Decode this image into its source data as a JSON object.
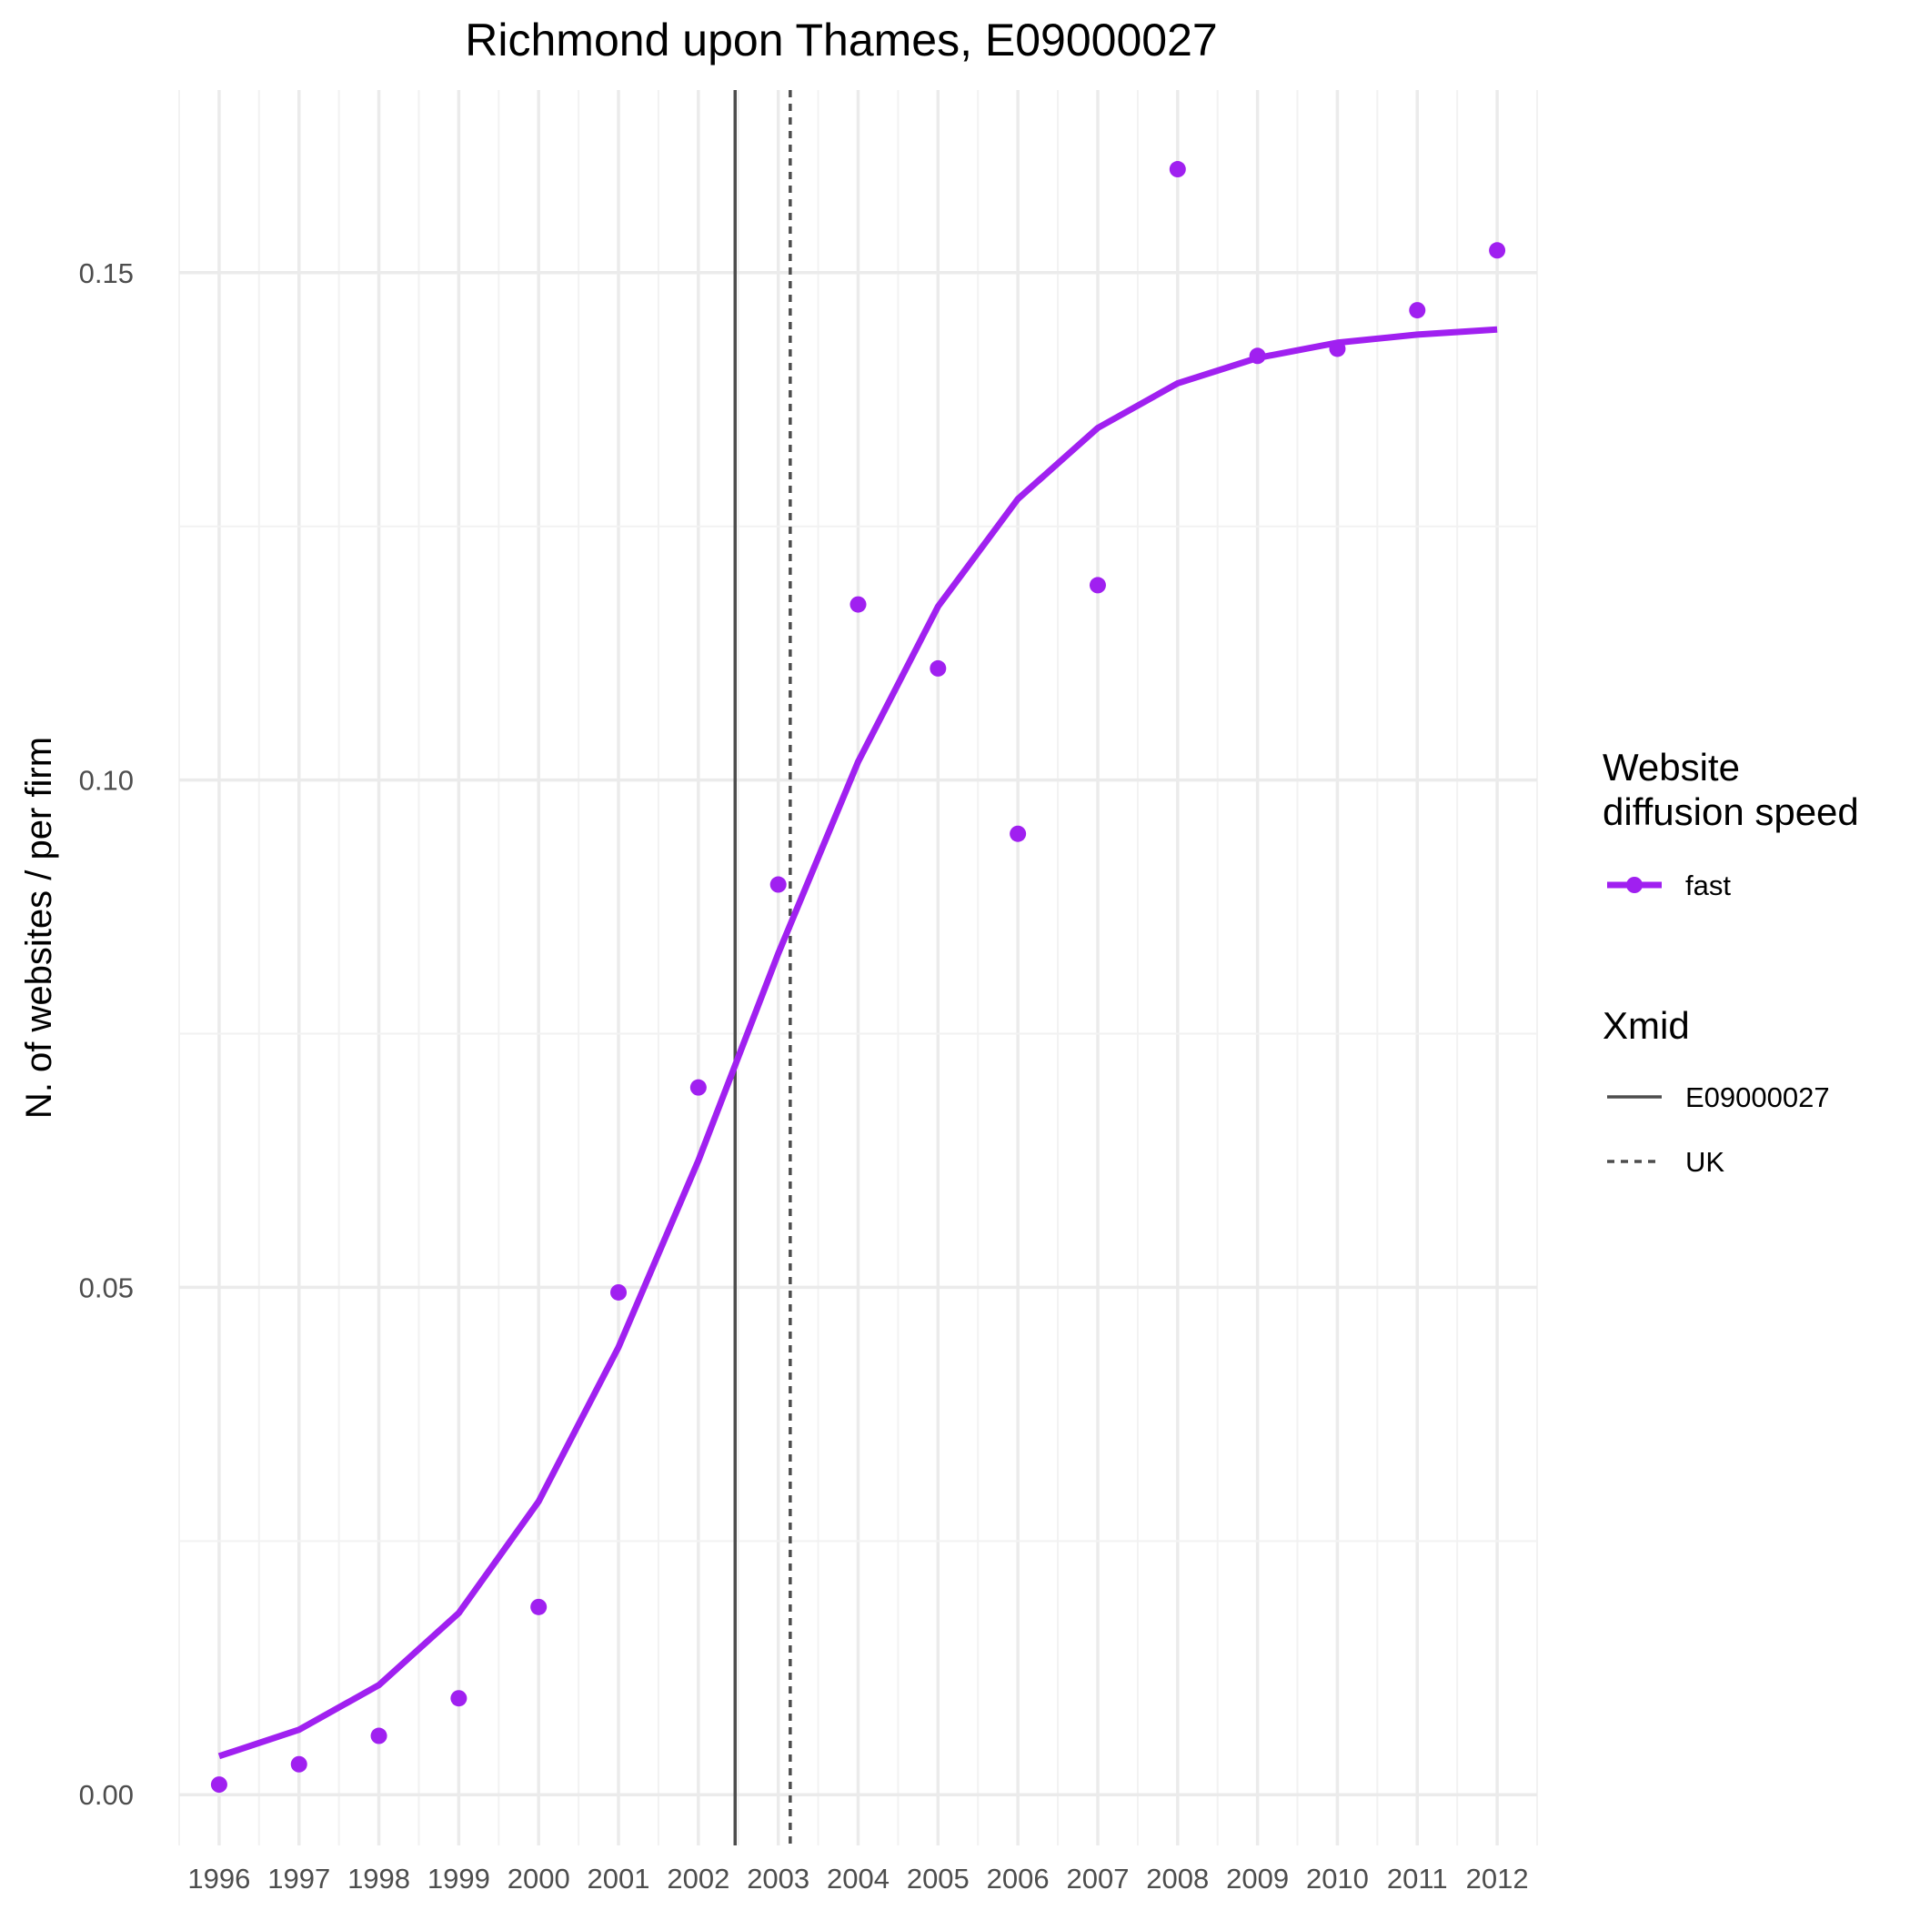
{
  "chart_data": {
    "type": "line",
    "title": "Richmond upon Thames, E09000027",
    "xlabel": "",
    "ylabel": "N. of websites / per firm",
    "x": [
      "1996",
      "1997",
      "1998",
      "1999",
      "2000",
      "2001",
      "2002",
      "2003",
      "2004",
      "2005",
      "2006",
      "2007",
      "2008",
      "2009",
      "2010",
      "2011",
      "2012"
    ],
    "xlim": [
      1995.5,
      2012.5
    ],
    "ylim": [
      -0.005,
      0.168
    ],
    "yticks": [
      0.0,
      0.05,
      0.1,
      0.15
    ],
    "ytick_labels": [
      "0.00",
      "0.05",
      "0.10",
      "0.15"
    ],
    "grid": true,
    "legend_position": "right",
    "series": [
      {
        "name": "fast",
        "color": "#a020f0",
        "points": [
          0.001,
          0.003,
          0.0058,
          0.0095,
          0.0185,
          0.0495,
          0.0697,
          0.0897,
          0.1173,
          0.111,
          0.0947,
          0.1192,
          0.1602,
          0.1418,
          0.1425,
          0.1463,
          0.1522
        ],
        "fit": [
          0.0038,
          0.0064,
          0.0108,
          0.0179,
          0.0289,
          0.0441,
          0.0625,
          0.0829,
          0.1018,
          0.1171,
          0.1277,
          0.1347,
          0.1391,
          0.1416,
          0.1431,
          0.1439,
          0.1444
        ]
      }
    ],
    "vlines": [
      {
        "name": "E09000027",
        "x": 2002.46,
        "style": "solid",
        "color": "#4d4d4d"
      },
      {
        "name": "UK",
        "x": 2003.15,
        "style": "dashed",
        "color": "#4d4d4d"
      }
    ],
    "legend": {
      "speed_title": "Website\ndiffusion speed",
      "speed_items": [
        "fast"
      ],
      "xmid_title": "Xmid",
      "xmid_items": [
        "E09000027",
        "UK"
      ]
    }
  }
}
